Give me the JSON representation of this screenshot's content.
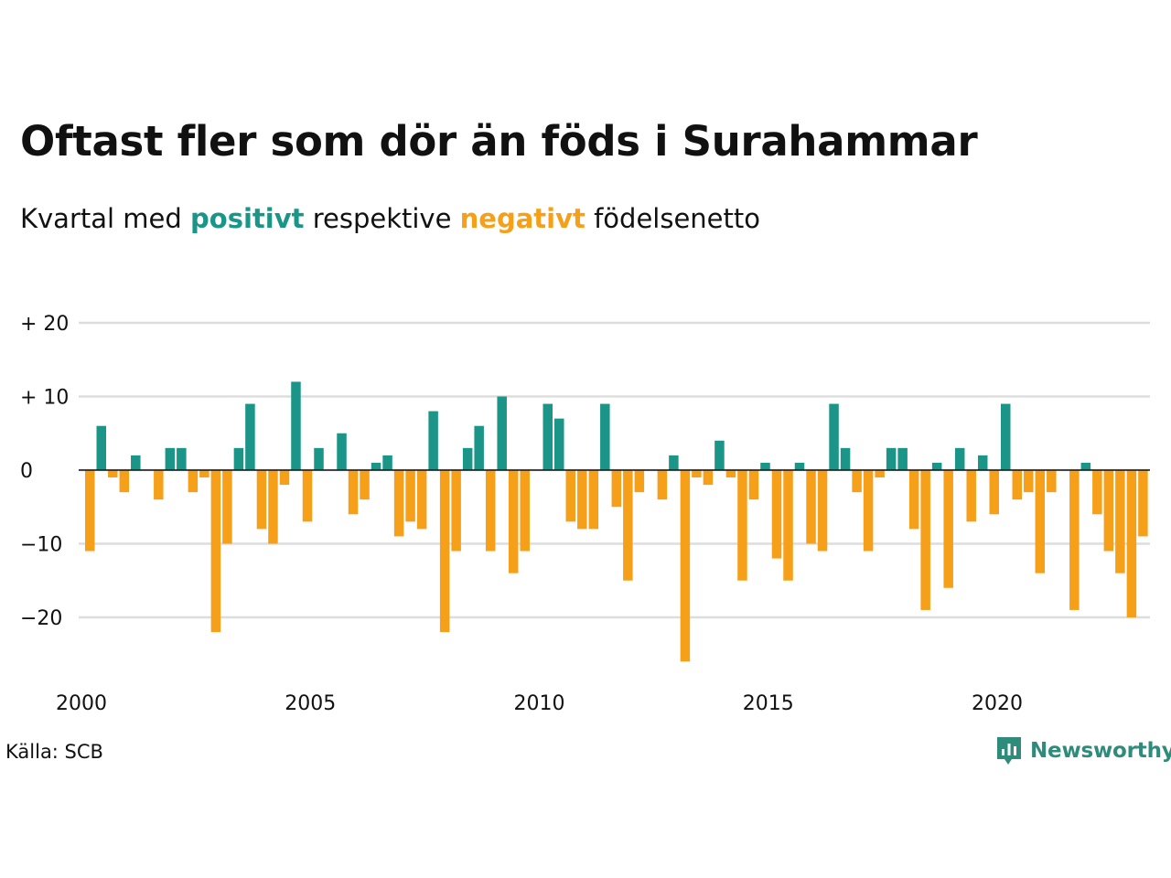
{
  "header": {
    "title": "Oftast fler som dör än föds i Surahammar",
    "subtitle_prefix": "Kvartal med",
    "subtitle_positive": "positivt",
    "subtitle_middle": "respektive",
    "subtitle_negative": "negativt",
    "subtitle_suffix": "födelsenetto"
  },
  "footer": {
    "source": "Källa: SCB",
    "brand": "Newsworthy"
  },
  "colors": {
    "positive": "#1a9587",
    "negative": "#f6a01a",
    "brand": "#2f8c7a",
    "grid": "#dddddd"
  },
  "icons": {
    "brand_logo": "newsworthy-bar-chart-icon"
  },
  "chart_data": {
    "type": "bar",
    "title": "Oftast fler som dör än föds i Surahammar",
    "subtitle": "Kvartal med positivt respektive negativt födelsenetto",
    "xlabel": "",
    "ylabel": "",
    "x_start": 2000,
    "periods_per_year": 4,
    "ylim": [
      -28,
      21
    ],
    "yticks": [
      20,
      10,
      0,
      -10,
      -20
    ],
    "ytick_labels": [
      "+ 20",
      "+ 10",
      "0",
      "−10",
      "−20"
    ],
    "xticks": [
      2000,
      2005,
      2010,
      2015,
      2020
    ],
    "xtick_labels": [
      "2000",
      "2005",
      "2010",
      "2015",
      "2020"
    ],
    "grid": true,
    "values": [
      -11,
      6,
      -1,
      -3,
      2,
      0,
      -4,
      3,
      3,
      -3,
      -1,
      -22,
      -10,
      3,
      9,
      -8,
      -10,
      -2,
      12,
      -7,
      3,
      0,
      5,
      -6,
      -4,
      1,
      2,
      -9,
      -7,
      -8,
      8,
      -22,
      -11,
      3,
      6,
      -11,
      10,
      -14,
      -11,
      0,
      9,
      7,
      -7,
      -8,
      -8,
      9,
      -5,
      -15,
      -3,
      0,
      -4,
      2,
      -26,
      -1,
      -2,
      4,
      -1,
      -15,
      -4,
      1,
      -12,
      -15,
      1,
      -10,
      -11,
      9,
      3,
      -3,
      -11,
      -1,
      3,
      3,
      -8,
      -19,
      1,
      -16,
      3,
      -7,
      2,
      -6,
      9,
      -4,
      -3,
      -14,
      -3,
      0,
      -19,
      1,
      -6,
      -11,
      -14,
      -20,
      -9
    ]
  }
}
